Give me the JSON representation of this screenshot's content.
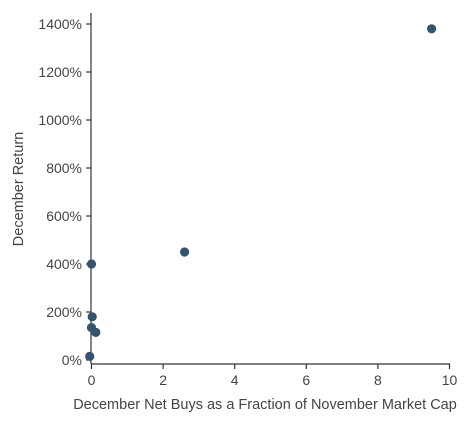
{
  "chart_data": {
    "type": "scatter",
    "title": "",
    "xlabel": "December Net Buys as a Fraction of November Market Cap",
    "ylabel": "December Return",
    "xlim": [
      -0.3,
      10
    ],
    "ylim": [
      -10,
      1420
    ],
    "x_ticks": [
      0,
      2,
      4,
      6,
      8,
      10
    ],
    "x_tick_labels": [
      "0",
      "2",
      "4",
      "6",
      "8",
      "10"
    ],
    "y_ticks": [
      0,
      200,
      400,
      600,
      800,
      1000,
      1200,
      1400
    ],
    "y_tick_labels": [
      "0%",
      "200%",
      "400%",
      "600%",
      "800%",
      "1000%",
      "1200%",
      "1400%"
    ],
    "grid": false,
    "point_color": "#34536f",
    "points": [
      {
        "x": 9.5,
        "y": 1380
      },
      {
        "x": 2.6,
        "y": 450
      },
      {
        "x": 0.0,
        "y": 400
      },
      {
        "x": 0.02,
        "y": 180
      },
      {
        "x": 0.0,
        "y": 135
      },
      {
        "x": 0.12,
        "y": 115
      },
      {
        "x": -0.05,
        "y": 15
      }
    ]
  }
}
